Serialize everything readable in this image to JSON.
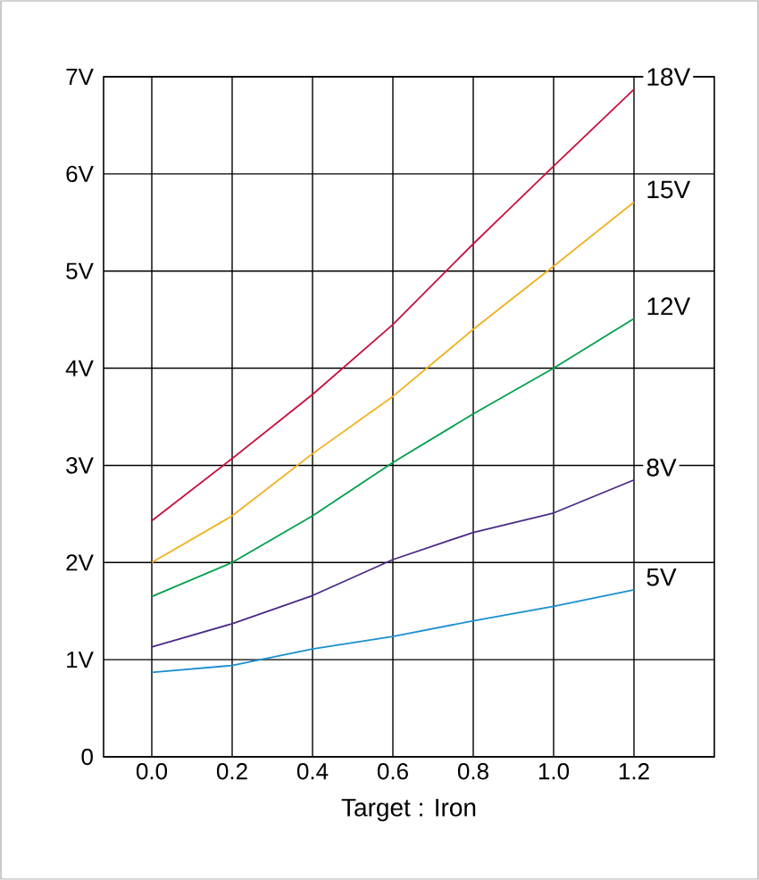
{
  "chart_data": {
    "type": "line",
    "xlabel": "Target : Iron",
    "x": [
      0.0,
      0.2,
      0.4,
      0.6,
      0.8,
      1.0,
      1.2
    ],
    "xlim": [
      -0.12,
      1.4
    ],
    "xticks": [
      {
        "value": 0,
        "label": "0.0"
      },
      0.2,
      0.4,
      0.6,
      0.8,
      {
        "value": 1,
        "label": "1.0"
      },
      1.2
    ],
    "ylim": [
      0,
      7
    ],
    "yticks": [
      {
        "value": 0,
        "label": "0"
      },
      {
        "value": 1,
        "label": "1V"
      },
      {
        "value": 2,
        "label": "2V"
      },
      {
        "value": 3,
        "label": "3V"
      },
      {
        "value": 4,
        "label": "4V"
      },
      {
        "value": 5,
        "label": "5V"
      },
      {
        "value": 6,
        "label": "6V"
      },
      {
        "value": 7,
        "label": "7V"
      }
    ],
    "grid": true,
    "legend": false,
    "marker": "none",
    "line_style": "solid",
    "series": [
      {
        "name": "18V",
        "color": "#c8103c",
        "values": [
          2.43,
          3.07,
          3.73,
          4.45,
          5.28,
          6.08,
          6.87
        ]
      },
      {
        "name": "15V",
        "color": "#f2b01e",
        "values": [
          2.0,
          2.48,
          3.12,
          3.71,
          4.4,
          5.05,
          5.71
        ]
      },
      {
        "name": "12V",
        "color": "#00a04a",
        "values": [
          1.65,
          2.0,
          2.48,
          3.03,
          3.53,
          4.0,
          4.51
        ]
      },
      {
        "name": "8V",
        "color": "#4b2a88",
        "values": [
          1.13,
          1.37,
          1.66,
          2.03,
          2.31,
          2.51,
          2.85
        ]
      },
      {
        "name": "5V",
        "color": "#1a8fd0",
        "values": [
          0.87,
          0.94,
          1.11,
          1.24,
          1.4,
          1.55,
          1.72
        ]
      }
    ]
  }
}
